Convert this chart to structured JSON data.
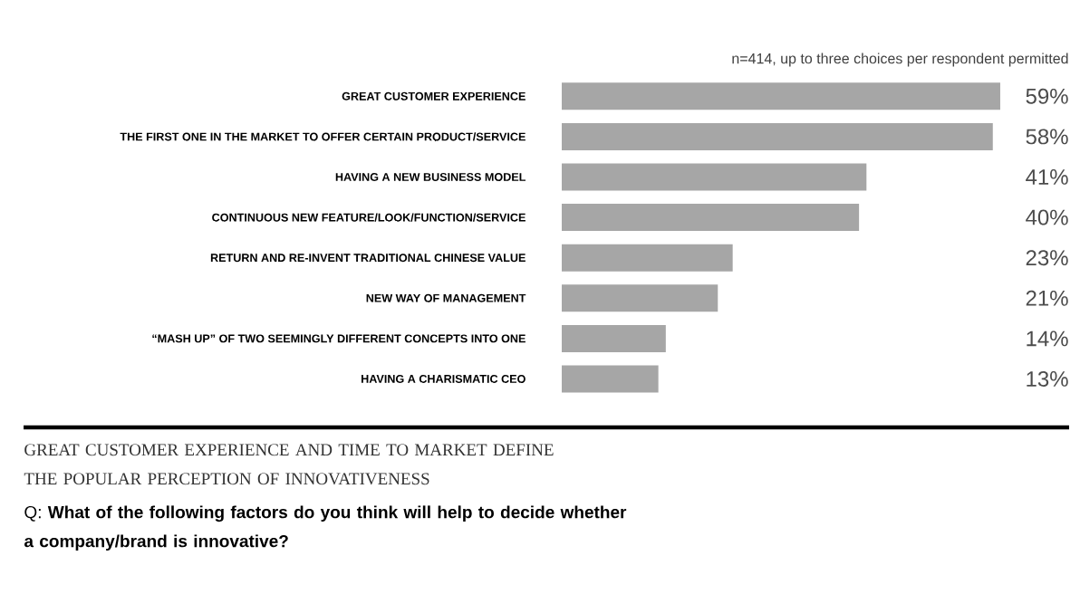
{
  "chart_data": {
    "type": "bar",
    "orientation": "horizontal",
    "title": "GREAT CUSTOMER EXPERIENCE AND TIME TO MARKET DEFINE THE POPULAR PERCEPTION OF INNOVATIVENESS",
    "subtitle": "Q: **What of the following factors do you think will help to decide whether a company/brand is innovative?**",
    "annotations": [
      "n=414, up to three choices per respondent permitted"
    ],
    "categories": [
      "GREAT CUSTOMER EXPERIENCE",
      "THE FIRST ONE IN THE MARKET TO OFFER CERTAIN PRODUCT/SERVICE",
      "HAVING A NEW BUSINESS MODEL",
      "CONTINUOUS NEW FEATURE/LOOK/FUNCTION/SERVICE",
      "RETURN AND RE-INVENT TRADITIONAL CHINESE VALUE",
      "NEW WAY OF MANAGEMENT",
      "“MASH UP” OF TWO SEEMINGLY DIFFERENT CONCEPTS INTO ONE",
      "HAVING A CHARISMATIC CEO"
    ],
    "values": [
      59,
      58,
      41,
      40,
      23,
      21,
      14,
      13
    ],
    "value_labels": [
      "59%",
      "58%",
      "41%",
      "40%",
      "23%",
      "21%",
      "14%",
      "13%"
    ],
    "color": "#a6a6a6"
  }
}
